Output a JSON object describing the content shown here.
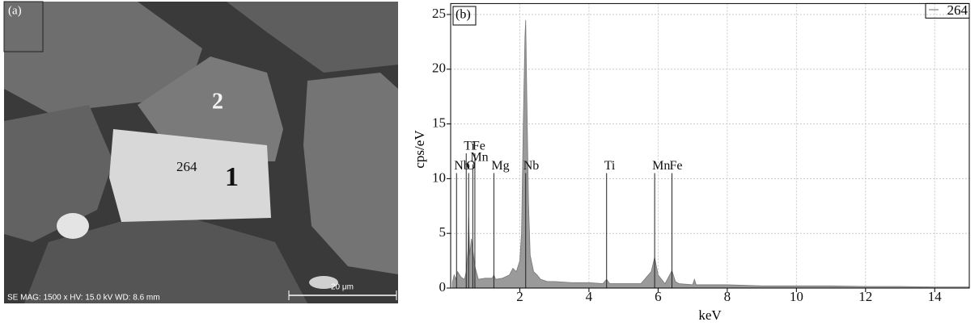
{
  "image": {
    "panel_label": "(a)",
    "labels": [
      "2",
      "264",
      "1"
    ],
    "scale_bar": "20 μm",
    "info": "SE MAG: 1500 x HV: 15.0 kV WD: 8.6 mm"
  },
  "chart_data": {
    "type": "area",
    "panel_label": "(b)",
    "x_label": "keV",
    "y_label": "cps/eV",
    "x": [
      0.05,
      0.1,
      0.15,
      0.2,
      0.3,
      0.4,
      0.45,
      0.5,
      0.52,
      0.55,
      0.6,
      0.7,
      0.8,
      1.0,
      1.2,
      1.25,
      1.3,
      1.5,
      1.7,
      1.8,
      1.9,
      2.0,
      2.05,
      2.1,
      2.15,
      2.17,
      2.2,
      2.25,
      2.3,
      2.4,
      2.5,
      2.6,
      2.8,
      3.0,
      3.5,
      4.0,
      4.4,
      4.51,
      4.6,
      5.0,
      5.5,
      5.8,
      5.9,
      6.0,
      6.2,
      6.4,
      6.5,
      6.6,
      7.0,
      7.05,
      7.1,
      8,
      9,
      10,
      11,
      12,
      13,
      14,
      15
    ],
    "series": [
      {
        "name": "264",
        "color": "#9a9a9a",
        "values": [
          0.5,
          1.2,
          0.8,
          1.5,
          1.0,
          0.8,
          1.5,
          3.5,
          6.5,
          3.0,
          4.5,
          2.0,
          0.8,
          0.9,
          0.9,
          1.2,
          0.8,
          0.9,
          1.2,
          1.8,
          1.5,
          2.5,
          5,
          15,
          23,
          24.5,
          18,
          8,
          3,
          1.5,
          1.2,
          0.8,
          0.6,
          0.6,
          0.5,
          0.5,
          0.4,
          0.8,
          0.4,
          0.4,
          0.4,
          1.5,
          2.8,
          1.2,
          0.4,
          1.6,
          0.6,
          0.4,
          0.3,
          0.8,
          0.3,
          0.3,
          0.2,
          0.2,
          0.2,
          0.15,
          0.15,
          0.1,
          0.1
        ]
      }
    ],
    "annotations": [
      {
        "label": "Nb",
        "x": 0.17,
        "y": 11.1
      },
      {
        "label": "Ti",
        "x": 0.45,
        "y": 12.9
      },
      {
        "label": "O",
        "x": 0.52,
        "y": 11.1
      },
      {
        "label": "Mn",
        "x": 0.64,
        "y": 11.9
      },
      {
        "label": "Fe",
        "x": 0.7,
        "y": 12.9
      },
      {
        "label": "Mg",
        "x": 1.25,
        "y": 11.1
      },
      {
        "label": "Nb",
        "x": 2.17,
        "y": 11.1
      },
      {
        "label": "Ti",
        "x": 4.51,
        "y": 11.1
      },
      {
        "label": "Mn",
        "x": 5.9,
        "y": 11.1
      },
      {
        "label": "Fe",
        "x": 6.4,
        "y": 11.1
      }
    ],
    "xlim": [
      0,
      15
    ],
    "ylim": [
      0,
      26
    ],
    "xticks": [
      2,
      4,
      6,
      8,
      10,
      12,
      14
    ],
    "yticks": [
      0,
      5,
      10,
      15,
      20,
      25
    ],
    "grid": true,
    "legend": "upper right"
  }
}
